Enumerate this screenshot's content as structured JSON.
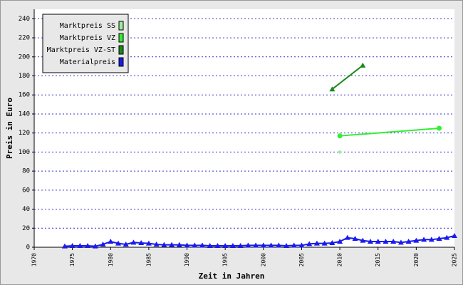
{
  "chart_data": {
    "type": "line",
    "x_label": "Zeit in Jahren",
    "y_label": "Preis in Euro",
    "xlim": [
      1970,
      2025
    ],
    "xticks": [
      1970,
      1975,
      1980,
      1985,
      1990,
      1995,
      2000,
      2005,
      2010,
      2015,
      2020,
      2025
    ],
    "ylim": [
      0,
      250
    ],
    "yticks": [
      0,
      20,
      40,
      60,
      80,
      100,
      120,
      140,
      160,
      180,
      200,
      220,
      240
    ],
    "grid": true,
    "legend": "upper left",
    "series": [
      {
        "name": "Marktpreis SS",
        "color": "#99ee99",
        "marker": "diamond",
        "x": [
          2010
        ],
        "values": [
          100
        ]
      },
      {
        "name": "Marktpreis VZ",
        "color": "#33ee33",
        "marker": "circle",
        "x": [
          2010,
          2023
        ],
        "values": [
          117,
          125
        ]
      },
      {
        "name": "Marktpreis VZ-ST",
        "color": "#1a8a1a",
        "marker": "triangle",
        "x": [
          2009,
          2013
        ],
        "values": [
          166,
          191
        ]
      },
      {
        "name": "Materialpreis",
        "color": "#1a1aee",
        "marker": "triangle",
        "x": [
          1974,
          1975,
          1976,
          1977,
          1978,
          1979,
          1980,
          1981,
          1982,
          1983,
          1984,
          1985,
          1986,
          1987,
          1988,
          1989,
          1990,
          1991,
          1992,
          1993,
          1994,
          1995,
          1996,
          1997,
          1998,
          1999,
          2000,
          2001,
          2002,
          2003,
          2004,
          2005,
          2006,
          2007,
          2008,
          2009,
          2010,
          2011,
          2012,
          2013,
          2014,
          2015,
          2016,
          2017,
          2018,
          2019,
          2020,
          2021,
          2022,
          2023,
          2024,
          2025
        ],
        "values": [
          1,
          1.5,
          1.5,
          1.5,
          1,
          3,
          6,
          4,
          3,
          5,
          4.5,
          4,
          3,
          2.5,
          2.5,
          2.5,
          2,
          2,
          2,
          1.5,
          1.5,
          1.5,
          1.5,
          1.5,
          2,
          2,
          2,
          2,
          2,
          1.5,
          2,
          2,
          3.5,
          4,
          4,
          4.5,
          6,
          10,
          9,
          7,
          6,
          6,
          6,
          6,
          5,
          6,
          7,
          8,
          8,
          9,
          10,
          12
        ]
      }
    ]
  }
}
